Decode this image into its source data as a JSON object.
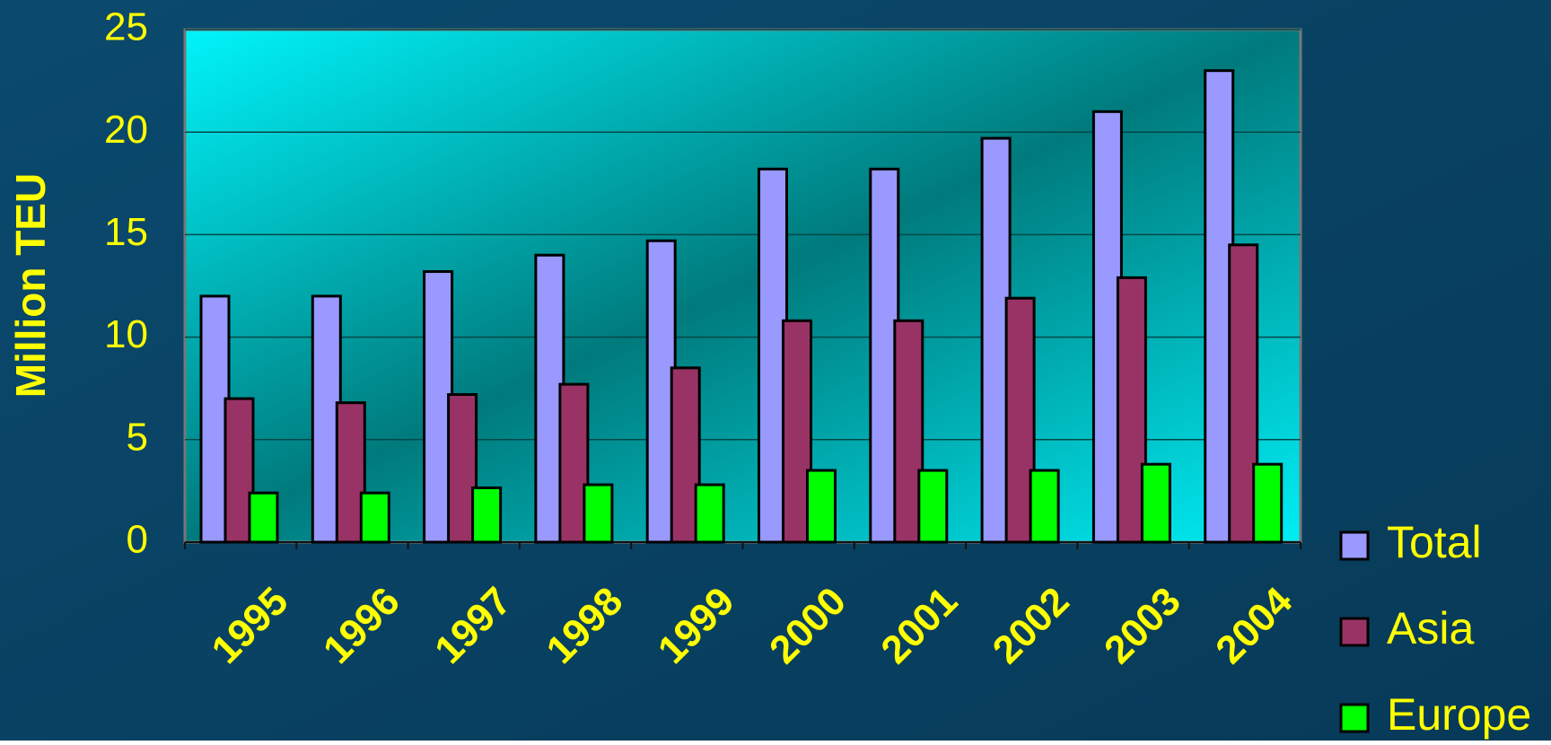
{
  "chart_data": {
    "type": "bar",
    "y_label": "Million TEU",
    "categories": [
      "1995",
      "1996",
      "1997",
      "1998",
      "1999",
      "2000",
      "2001",
      "2002",
      "2003",
      "2004"
    ],
    "series": [
      {
        "name": "Total",
        "color": "#9999ff",
        "values": [
          12,
          12,
          13.2,
          14,
          14.7,
          18.2,
          18.2,
          19.7,
          21,
          23
        ]
      },
      {
        "name": "Asia",
        "color": "#993366",
        "values": [
          7,
          6.8,
          7.2,
          7.7,
          8.5,
          10.8,
          10.8,
          11.9,
          12.9,
          14.5
        ]
      },
      {
        "name": "Europe",
        "color": "#00ff00",
        "values": [
          2.4,
          2.4,
          2.65,
          2.8,
          2.8,
          3.5,
          3.5,
          3.5,
          3.8,
          3.8
        ]
      }
    ],
    "ylim": [
      0,
      25
    ],
    "yticks": [
      0,
      5,
      10,
      15,
      20,
      25
    ],
    "grid": true,
    "legend": "right"
  }
}
